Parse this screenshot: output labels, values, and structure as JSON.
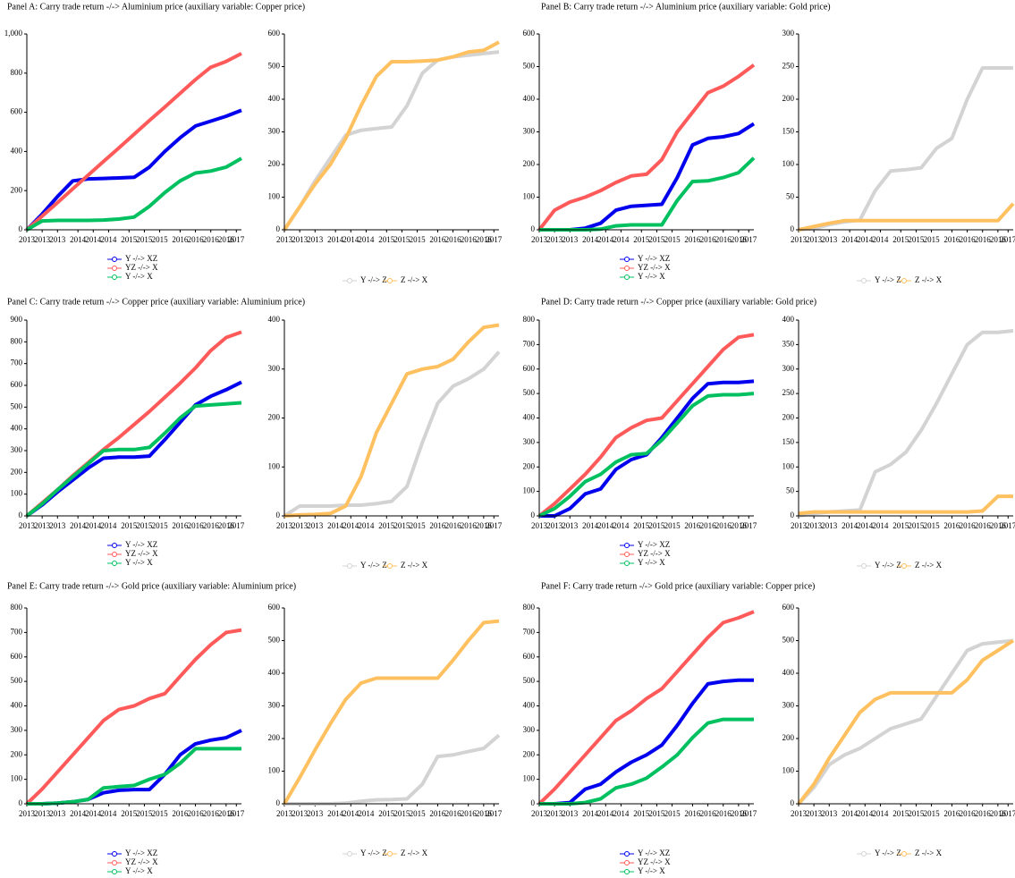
{
  "chart_data": {
    "type": "line",
    "x": [
      2013.0,
      2013.3,
      2013.6,
      2013.9,
      2014.2,
      2014.5,
      2014.8,
      2015.1,
      2015.4,
      2015.7,
      2016.0,
      2016.3,
      2016.6,
      2016.9,
      2017.2
    ],
    "xlim": [
      2013.0,
      2017.2
    ],
    "xticks": [
      {
        "value": 2013.0,
        "label": "2013"
      },
      {
        "value": 2013.3,
        "label": "2013"
      },
      {
        "value": 2013.6,
        "label": "2013"
      },
      {
        "value": 2014.0,
        "label": "2014"
      },
      {
        "value": 2014.3,
        "label": "2014"
      },
      {
        "value": 2014.6,
        "label": "2014"
      },
      {
        "value": 2015.0,
        "label": "2015"
      },
      {
        "value": 2015.3,
        "label": "2015"
      },
      {
        "value": 2015.6,
        "label": "2015"
      },
      {
        "value": 2016.0,
        "label": "2016"
      },
      {
        "value": 2016.3,
        "label": "2016"
      },
      {
        "value": 2016.6,
        "label": "2016"
      },
      {
        "value": 2016.9,
        "label": "2016"
      },
      {
        "value": 2017.1,
        "label": "2017"
      }
    ],
    "charts": [
      {
        "title": "Panel A: Carry trade return -/-> Aluminium price (auxiliary variable: Copper price)",
        "ylim": [
          0,
          1000
        ],
        "yticks": [
          0,
          200,
          400,
          600,
          800,
          {
            "value": 1000,
            "label": "1,000"
          }
        ],
        "series": [
          {
            "name": "Y -/-> XZ",
            "color": "#0000ee",
            "values": [
              0,
              80,
              170,
              250,
              260,
              262,
              265,
              268,
              320,
              400,
              470,
              530,
              555,
              580,
              610
            ]
          },
          {
            "name": "YZ -/-> X",
            "color": "#ff5a5a",
            "values": [
              0,
              70,
              139,
              209,
              279,
              349,
              418,
              488,
              558,
              627,
              697,
              767,
              830,
              860,
              900
            ]
          },
          {
            "name": "Y -/-> X",
            "color": "#00c060",
            "values": [
              0,
              45,
              48,
              48,
              48,
              50,
              55,
              65,
              120,
              190,
              250,
              290,
              300,
              320,
              365
            ]
          }
        ]
      },
      {
        "ylim": [
          0,
          600
        ],
        "yticks": [
          0,
          100,
          200,
          300,
          400,
          500,
          600
        ],
        "series": [
          {
            "name": "Y -/-> Z",
            "color": "#d3d3d3",
            "values": [
              0,
              70,
              150,
              220,
              290,
              305,
              310,
              315,
              380,
              480,
              520,
              530,
              535,
              540,
              545
            ]
          },
          {
            "name": "Z -/-> X",
            "color": "#ffc060",
            "values": [
              0,
              70,
              140,
              200,
              280,
              380,
              470,
              515,
              515,
              517,
              520,
              530,
              545,
              550,
              575
            ]
          }
        ]
      },
      {
        "title": "Panel B: Carry trade return -/-> Aluminium price (auxiliary variable: Gold price)",
        "ylim": [
          0,
          600
        ],
        "yticks": [
          0,
          100,
          200,
          300,
          400,
          500,
          600
        ],
        "series": [
          {
            "name": "Y -/-> XZ",
            "color": "#0000ee",
            "values": [
              0,
              0,
              0,
              5,
              20,
              60,
              72,
              75,
              78,
              160,
              260,
              280,
              285,
              295,
              325
            ]
          },
          {
            "name": "YZ -/-> X",
            "color": "#ff5a5a",
            "values": [
              0,
              60,
              85,
              100,
              120,
              145,
              165,
              170,
              215,
              300,
              360,
              420,
              440,
              470,
              505
            ]
          },
          {
            "name": "Y -/-> X",
            "color": "#00c060",
            "values": [
              0,
              0,
              0,
              0,
              2,
              12,
              15,
              15,
              15,
              90,
              148,
              150,
              160,
              175,
              220
            ]
          }
        ]
      },
      {
        "ylim": [
          0,
          300
        ],
        "yticks": [
          0,
          50,
          100,
          150,
          200,
          250,
          300
        ],
        "series": [
          {
            "name": "Y -/-> Z",
            "color": "#d3d3d3",
            "values": [
              0,
              2,
              8,
              12,
              15,
              60,
              90,
              92,
              95,
              125,
              140,
              200,
              248,
              248,
              248
            ]
          },
          {
            "name": "Z -/-> X",
            "color": "#ffc060",
            "values": [
              0,
              5,
              10,
              14,
              14,
              14,
              14,
              14,
              14,
              14,
              14,
              14,
              14,
              14,
              40
            ]
          }
        ]
      },
      {
        "title": "Panel C: Carry trade return -/-> Copper price (auxiliary variable: Aluminium price)",
        "ylim": [
          0,
          900
        ],
        "yticks": [
          0,
          100,
          200,
          300,
          400,
          500,
          600,
          700,
          800,
          900
        ],
        "series": [
          {
            "name": "Y -/-> XZ",
            "color": "#0000ee",
            "values": [
              0,
              50,
              110,
              165,
              220,
              265,
              270,
              270,
              275,
              350,
              430,
              510,
              550,
              580,
              615
            ]
          },
          {
            "name": "YZ -/-> X",
            "color": "#ff5a5a",
            "values": [
              0,
              60,
              120,
              185,
              245,
              305,
              360,
              420,
              480,
              545,
              610,
              680,
              760,
              820,
              845
            ]
          },
          {
            "name": "Y -/-> X",
            "color": "#00c060",
            "values": [
              0,
              55,
              120,
              180,
              240,
              300,
              305,
              305,
              315,
              380,
              450,
              505,
              510,
              515,
              520
            ]
          }
        ]
      },
      {
        "ylim": [
          0,
          400
        ],
        "yticks": [
          0,
          100,
          200,
          300,
          400
        ],
        "series": [
          {
            "name": "Y -/-> Z",
            "color": "#d3d3d3",
            "values": [
              0,
              20,
              20,
              20,
              22,
              22,
              25,
              30,
              60,
              150,
              230,
              265,
              280,
              300,
              335
            ]
          },
          {
            "name": "Z -/-> X",
            "color": "#ffc060",
            "values": [
              0,
              2,
              3,
              5,
              20,
              80,
              170,
              230,
              290,
              300,
              305,
              320,
              355,
              385,
              390
            ]
          }
        ]
      },
      {
        "title": "Panel D: Carry trade return -/-> Copper price (auxiliary variable: Gold price)",
        "ylim": [
          0,
          800
        ],
        "yticks": [
          0,
          100,
          200,
          300,
          400,
          500,
          600,
          700,
          800
        ],
        "series": [
          {
            "name": "Y -/-> XZ",
            "color": "#0000ee",
            "values": [
              0,
              0,
              30,
              90,
              110,
              190,
              230,
              250,
              320,
              400,
              480,
              540,
              545,
              545,
              550
            ]
          },
          {
            "name": "YZ -/-> X",
            "color": "#ff5a5a",
            "values": [
              0,
              50,
              110,
              170,
              240,
              320,
              360,
              390,
              400,
              470,
              540,
              610,
              680,
              730,
              740
            ]
          },
          {
            "name": "Y -/-> X",
            "color": "#00c060",
            "values": [
              0,
              30,
              80,
              140,
              170,
              220,
              250,
              255,
              310,
              380,
              450,
              490,
              495,
              495,
              500
            ]
          }
        ]
      },
      {
        "ylim": [
          0,
          400
        ],
        "yticks": [
          0,
          50,
          100,
          150,
          200,
          250,
          300,
          350,
          400
        ],
        "series": [
          {
            "name": "Y -/-> Z",
            "color": "#d3d3d3",
            "values": [
              0,
              5,
              8,
              10,
              12,
              90,
              105,
              130,
              175,
              230,
              290,
              350,
              375,
              375,
              378
            ]
          },
          {
            "name": "Z -/-> X",
            "color": "#ffc060",
            "values": [
              5,
              8,
              8,
              8,
              8,
              8,
              8,
              8,
              8,
              8,
              8,
              8,
              10,
              40,
              40
            ]
          }
        ]
      },
      {
        "title": "Panel E: Carry trade return -/-> Gold price (auxiliary variable: Aluminium price)",
        "ylim": [
          0,
          800
        ],
        "yticks": [
          0,
          100,
          200,
          300,
          400,
          500,
          600,
          700,
          800
        ],
        "series": [
          {
            "name": "Y -/-> XZ",
            "color": "#0000ee",
            "values": [
              0,
              0,
              3,
              8,
              18,
              45,
              55,
              58,
              58,
              120,
              200,
              245,
              260,
              270,
              300
            ]
          },
          {
            "name": "YZ -/-> X",
            "color": "#ff5a5a",
            "values": [
              0,
              60,
              130,
              200,
              270,
              340,
              385,
              400,
              430,
              450,
              520,
              590,
              650,
              700,
              710
            ]
          },
          {
            "name": "Y -/-> X",
            "color": "#00c060",
            "values": [
              0,
              0,
              3,
              8,
              18,
              65,
              70,
              75,
              100,
              120,
              165,
              225,
              225,
              225,
              225
            ]
          }
        ]
      },
      {
        "ylim": [
          0,
          600
        ],
        "yticks": [
          0,
          100,
          200,
          300,
          400,
          500,
          600
        ],
        "series": [
          {
            "name": "Y -/-> Z",
            "color": "#d3d3d3",
            "values": [
              0,
              0,
              0,
              0,
              2,
              8,
              12,
              13,
              15,
              60,
              145,
              150,
              160,
              170,
              210
            ]
          },
          {
            "name": "Z -/-> X",
            "color": "#ffc060",
            "values": [
              0,
              80,
              165,
              245,
              320,
              370,
              385,
              385,
              385,
              385,
              385,
              440,
              500,
              555,
              560
            ]
          }
        ]
      },
      {
        "title": "Panel F: Carry trade return -/-> Gold price (auxiliary variable: Copper price)",
        "ylim": [
          0,
          800
        ],
        "yticks": [
          0,
          100,
          200,
          300,
          400,
          500,
          600,
          700,
          800
        ],
        "series": [
          {
            "name": "Y -/-> XZ",
            "color": "#0000ee",
            "values": [
              0,
              0,
              5,
              60,
              80,
              130,
              170,
              200,
              240,
              320,
              410,
              490,
              500,
              505,
              505
            ]
          },
          {
            "name": "YZ -/-> X",
            "color": "#ff5a5a",
            "values": [
              0,
              60,
              130,
              200,
              270,
              340,
              380,
              430,
              470,
              540,
              610,
              680,
              740,
              760,
              785
            ]
          },
          {
            "name": "Y -/-> X",
            "color": "#00c060",
            "values": [
              0,
              0,
              0,
              5,
              20,
              65,
              80,
              105,
              150,
              200,
              270,
              330,
              345,
              345,
              345
            ]
          }
        ]
      },
      {
        "ylim": [
          0,
          600
        ],
        "yticks": [
          0,
          100,
          200,
          300,
          400,
          500,
          600
        ],
        "series": [
          {
            "name": "Y -/-> Z",
            "color": "#d3d3d3",
            "values": [
              0,
              50,
              120,
              150,
              170,
              200,
              230,
              245,
              260,
              330,
              400,
              470,
              490,
              495,
              500
            ]
          },
          {
            "name": "Z -/-> X",
            "color": "#ffc060",
            "values": [
              0,
              60,
              140,
              210,
              280,
              320,
              340,
              340,
              340,
              340,
              340,
              380,
              440,
              470,
              500
            ]
          }
        ]
      }
    ]
  }
}
